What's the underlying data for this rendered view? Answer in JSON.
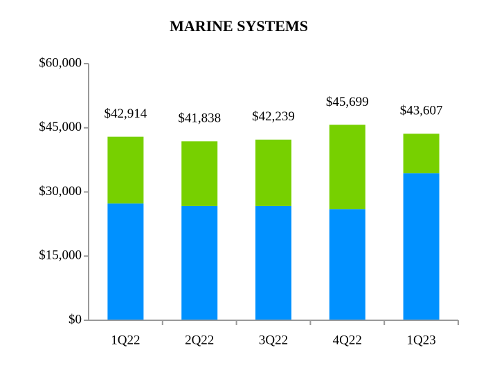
{
  "chart_data": {
    "type": "stacked_bar",
    "title": "MARINE SYSTEMS",
    "categories": [
      "1Q22",
      "2Q22",
      "3Q22",
      "4Q22",
      "1Q23"
    ],
    "series": [
      {
        "color": "#0091ff",
        "values": [
          27300,
          26700,
          26700,
          26000,
          34400
        ]
      },
      {
        "color": "#77d000",
        "values": [
          15614,
          15138,
          15539,
          19699,
          9207
        ]
      }
    ],
    "totals": [
      42914,
      41838,
      42239,
      45699,
      43607
    ],
    "total_labels": [
      "$42,914",
      "$41,838",
      "$42,239",
      "$45,699",
      "$43,607"
    ],
    "ylim": [
      0,
      60000
    ],
    "yticks": [
      {
        "value": 0,
        "label": "$0"
      },
      {
        "value": 15000,
        "label": "$15,000"
      },
      {
        "value": 30000,
        "label": "$30,000"
      },
      {
        "value": 45000,
        "label": "$45,000"
      },
      {
        "value": 60000,
        "label": "$60,000"
      }
    ],
    "grid": false
  }
}
